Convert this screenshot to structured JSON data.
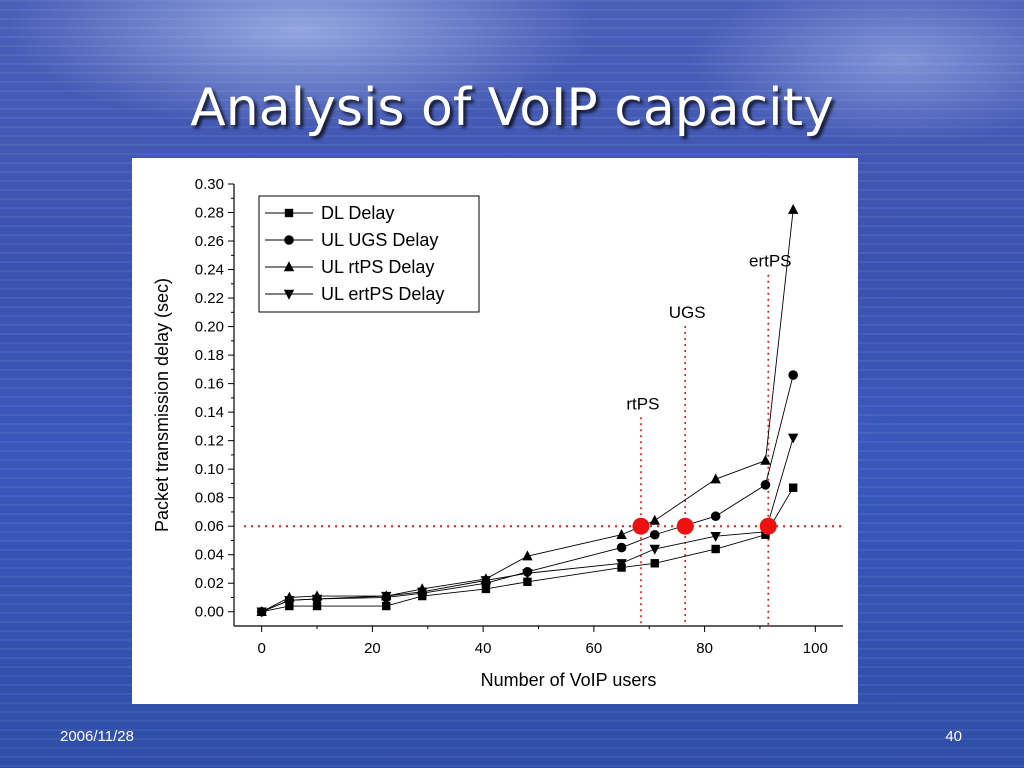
{
  "slide": {
    "title": "Analysis of VoIP capacity",
    "date": "2006/11/28",
    "page_number": "40"
  },
  "colors": {
    "threshold_line": "#e11b1b",
    "marker_highlight": "#ee1111",
    "series": "#000000"
  },
  "chart_data": {
    "type": "line",
    "xlabel": "Number of VoIP users",
    "ylabel": "Packet transmission delay (sec)",
    "xlim": [
      -5,
      105
    ],
    "ylim": [
      -0.01,
      0.3
    ],
    "xticks": [
      0,
      20,
      40,
      60,
      80,
      100
    ],
    "yticks": [
      0.0,
      0.02,
      0.04,
      0.06,
      0.08,
      0.1,
      0.12,
      0.14,
      0.16,
      0.18,
      0.2,
      0.22,
      0.24,
      0.26,
      0.28,
      0.3
    ],
    "legend_position": "top-left",
    "series": [
      {
        "name": "DL Delay",
        "marker": "square",
        "points": [
          [
            0,
            0.0
          ],
          [
            5,
            0.004
          ],
          [
            10,
            0.004
          ],
          [
            22.5,
            0.004
          ],
          [
            29,
            0.011
          ],
          [
            40.5,
            0.016
          ],
          [
            48,
            0.021
          ],
          [
            65,
            0.031
          ],
          [
            71,
            0.034
          ],
          [
            82,
            0.044
          ],
          [
            91,
            0.054
          ],
          [
            96,
            0.087
          ]
        ]
      },
      {
        "name": "UL UGS Delay",
        "marker": "circle",
        "points": [
          [
            0,
            0.0
          ],
          [
            5,
            0.008
          ],
          [
            10,
            0.009
          ],
          [
            22.5,
            0.01
          ],
          [
            29,
            0.013
          ],
          [
            40.5,
            0.02
          ],
          [
            48,
            0.028
          ],
          [
            65,
            0.045
          ],
          [
            71,
            0.054
          ],
          [
            82,
            0.067
          ],
          [
            91,
            0.089
          ],
          [
            96,
            0.166
          ]
        ]
      },
      {
        "name": "UL rtPS Delay",
        "marker": "triangle-up",
        "points": [
          [
            0,
            0.0
          ],
          [
            5,
            0.01
          ],
          [
            10,
            0.011
          ],
          [
            22.5,
            0.011
          ],
          [
            29,
            0.016
          ],
          [
            40.5,
            0.023
          ],
          [
            48,
            0.039
          ],
          [
            65,
            0.054
          ],
          [
            71,
            0.064
          ],
          [
            82,
            0.093
          ],
          [
            91,
            0.106
          ],
          [
            96,
            0.282
          ]
        ]
      },
      {
        "name": "UL ertPS Delay",
        "marker": "triangle-down",
        "points": [
          [
            0,
            0.0
          ],
          [
            5,
            0.008
          ],
          [
            10,
            0.009
          ],
          [
            22.5,
            0.011
          ],
          [
            29,
            0.014
          ],
          [
            40.5,
            0.022
          ],
          [
            48,
            0.027
          ],
          [
            65,
            0.034
          ],
          [
            71,
            0.044
          ],
          [
            82,
            0.053
          ],
          [
            91,
            0.056
          ],
          [
            96,
            0.122
          ]
        ]
      }
    ],
    "threshold": {
      "y": 0.06
    },
    "annotations": [
      {
        "label": "rtPS",
        "x": 68.5,
        "y_text": 0.142
      },
      {
        "label": "UGS",
        "x": 76.5,
        "y_text": 0.206
      },
      {
        "label": "ertPS",
        "x": 91.5,
        "y_text": 0.242
      }
    ],
    "highlight_points": [
      [
        68.5,
        0.06
      ],
      [
        76.5,
        0.06
      ],
      [
        91.5,
        0.06
      ]
    ]
  }
}
